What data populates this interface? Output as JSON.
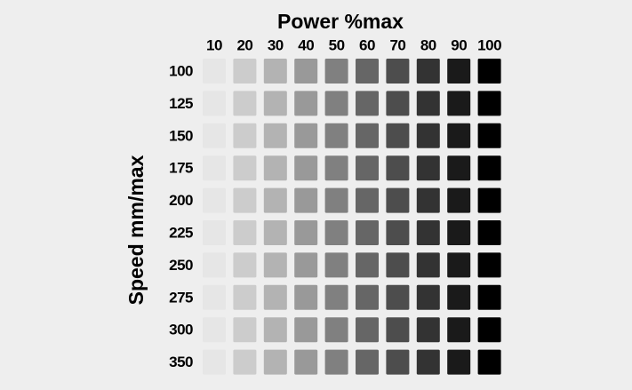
{
  "title": "Power %max",
  "y_axis_label": "Speed mm/max",
  "columns": [
    {
      "label": "10",
      "color": "#e6e6e6"
    },
    {
      "label": "20",
      "color": "#cccccc"
    },
    {
      "label": "30",
      "color": "#b3b3b3"
    },
    {
      "label": "40",
      "color": "#999999"
    },
    {
      "label": "50",
      "color": "#808080"
    },
    {
      "label": "60",
      "color": "#666666"
    },
    {
      "label": "70",
      "color": "#4d4d4d"
    },
    {
      "label": "80",
      "color": "#333333"
    },
    {
      "label": "90",
      "color": "#1a1a1a"
    },
    {
      "label": "100",
      "color": "#000000"
    }
  ],
  "rows": [
    "100",
    "125",
    "150",
    "175",
    "200",
    "225",
    "250",
    "275",
    "300",
    "350"
  ]
}
